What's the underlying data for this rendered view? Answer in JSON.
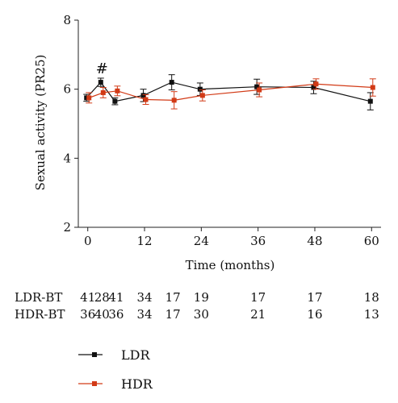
{
  "chart_data": {
    "type": "line",
    "title": "",
    "xlabel": "Time (months)",
    "ylabel": "Sexual activity (PR25)",
    "xlim": [
      -2,
      62
    ],
    "ylim": [
      2,
      8
    ],
    "xticks": [
      0,
      12,
      24,
      36,
      48,
      60
    ],
    "yticks": [
      2,
      4,
      6,
      8
    ],
    "legend_position": "bottom-left",
    "grid": false,
    "series": [
      {
        "name": "LDR",
        "color": "#111111",
        "x": [
          0,
          3,
          6,
          12,
          18,
          24,
          36,
          48,
          60
        ],
        "y": [
          5.75,
          6.2,
          5.65,
          5.82,
          6.2,
          6.0,
          6.07,
          6.05,
          5.65
        ],
        "err": [
          0.1,
          0.12,
          0.1,
          0.18,
          0.22,
          0.18,
          0.22,
          0.18,
          0.25
        ]
      },
      {
        "name": "HDR",
        "color": "#d23a16",
        "x": [
          0,
          3,
          6,
          12,
          18,
          24,
          36,
          48,
          60
        ],
        "y": [
          5.75,
          5.9,
          5.95,
          5.7,
          5.68,
          5.82,
          5.98,
          6.15,
          6.05
        ],
        "err": [
          0.15,
          0.15,
          0.14,
          0.14,
          0.25,
          0.16,
          0.2,
          0.15,
          0.25
        ]
      }
    ],
    "annotations": [
      {
        "text": "#",
        "x": 3,
        "y": 6.6
      }
    ],
    "at_risk_table": {
      "rows": [
        {
          "label": "LDR-BT",
          "x": [
            0,
            3,
            6,
            12,
            18,
            24,
            36,
            48,
            60
          ],
          "counts": [
            "41",
            "28",
            "41",
            "34",
            "17",
            "19",
            "17",
            "17",
            "18"
          ]
        },
        {
          "label": "HDR-BT",
          "x": [
            0,
            3,
            6,
            12,
            18,
            24,
            36,
            48,
            60
          ],
          "counts": [
            "36",
            "40",
            "36",
            "34",
            "17",
            "30",
            "21",
            "16",
            "13"
          ]
        }
      ]
    }
  }
}
